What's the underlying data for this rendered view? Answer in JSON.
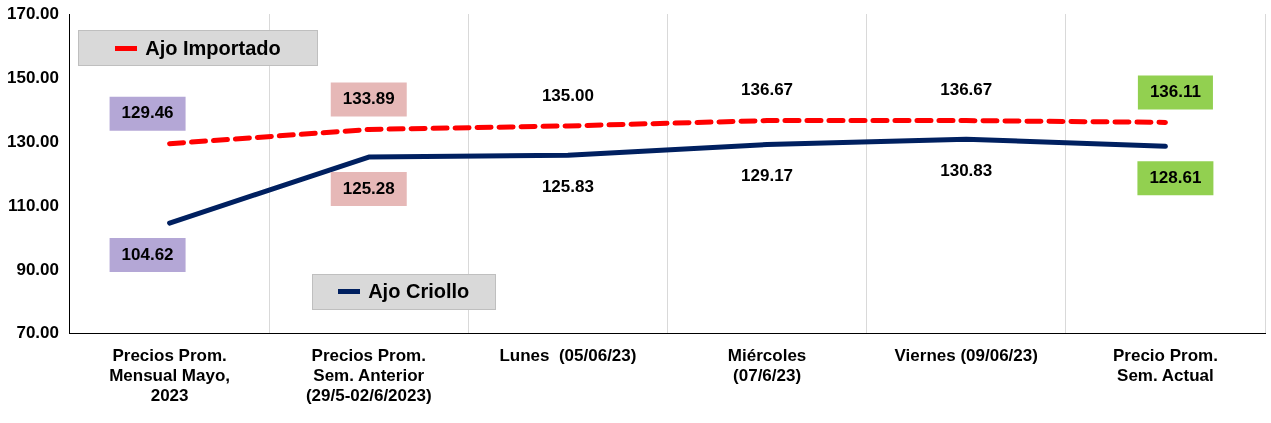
{
  "chart_data": {
    "type": "line",
    "categories": [
      "Precios Prom. Mensual Mayo, 2023",
      "Precios Prom. Sem. Anterior (29/5-02/6/2023)",
      "Lunes  (05/06/23)",
      "Miércoles (07/6/23)",
      "Viernes (09/06/23)",
      "Precio Prom. Sem. Actual"
    ],
    "series": [
      {
        "name": "Ajo Importado",
        "color": "#ff0000",
        "line_style": "dashed",
        "values": [
          129.46,
          133.89,
          135.0,
          136.67,
          136.67,
          136.11
        ]
      },
      {
        "name": "Ajo Criollo",
        "color": "#002060",
        "line_style": "solid",
        "values": [
          104.62,
          125.28,
          125.83,
          129.17,
          130.83,
          128.61
        ]
      }
    ],
    "ylim": [
      70,
      170
    ],
    "yticks": [
      {
        "value": 70,
        "label": "70.00"
      },
      {
        "value": 90,
        "label": "90.00"
      },
      {
        "value": 110,
        "label": "110.00"
      },
      {
        "value": 130,
        "label": "130.00"
      },
      {
        "value": 150,
        "label": "150.00"
      },
      {
        "value": 170,
        "label": "170.00"
      }
    ],
    "value_labels": [
      [
        "129.46",
        "133.89",
        "135.00",
        "136.67",
        "136.67",
        "136.11"
      ],
      [
        "104.62",
        "125.28",
        "125.83",
        "129.17",
        "130.83",
        "128.61"
      ]
    ],
    "grid": "x",
    "legend": "top left",
    "marker": "none"
  }
}
